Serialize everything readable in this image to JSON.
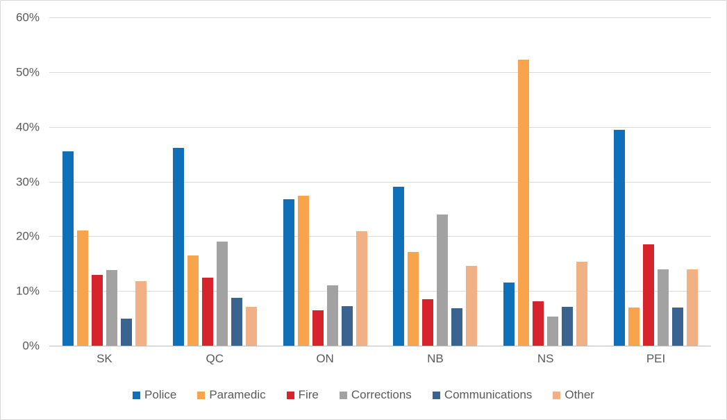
{
  "chart_data": {
    "type": "bar",
    "title": "",
    "xlabel": "",
    "ylabel": "",
    "ylim": [
      0,
      60
    ],
    "yticks": [
      "0%",
      "10%",
      "20%",
      "30%",
      "40%",
      "50%",
      "60%"
    ],
    "grid": true,
    "legend_position": "bottom",
    "categories": [
      "SK",
      "QC",
      "ON",
      "NB",
      "NS",
      "PEI"
    ],
    "series": [
      {
        "name": "Police",
        "color": "#0f6fb8",
        "values": [
          35.5,
          36.2,
          26.8,
          29.1,
          11.6,
          39.4
        ]
      },
      {
        "name": "Paramedic",
        "color": "#f8a44d",
        "values": [
          21.0,
          16.5,
          27.4,
          17.1,
          52.3,
          7.0
        ]
      },
      {
        "name": "Fire",
        "color": "#d7232b",
        "values": [
          13.0,
          12.4,
          6.5,
          8.5,
          8.1,
          18.5
        ]
      },
      {
        "name": "Corrections",
        "color": "#a2a2a2",
        "values": [
          13.8,
          19.0,
          11.1,
          24.0,
          5.3,
          14.0
        ]
      },
      {
        "name": "Communications",
        "color": "#3a6390",
        "values": [
          5.0,
          8.7,
          7.2,
          6.8,
          7.1,
          7.0
        ]
      },
      {
        "name": "Other",
        "color": "#f2b184",
        "values": [
          11.8,
          7.1,
          20.9,
          14.6,
          15.3,
          14.0
        ]
      }
    ],
    "colors": {
      "gridline": "#d9d9d9",
      "axis_line": "#bfbfbf",
      "tick_text": "#595959",
      "legend_text": "#595959",
      "background": "#ffffff",
      "frame_border": "#d6d6d6"
    }
  }
}
